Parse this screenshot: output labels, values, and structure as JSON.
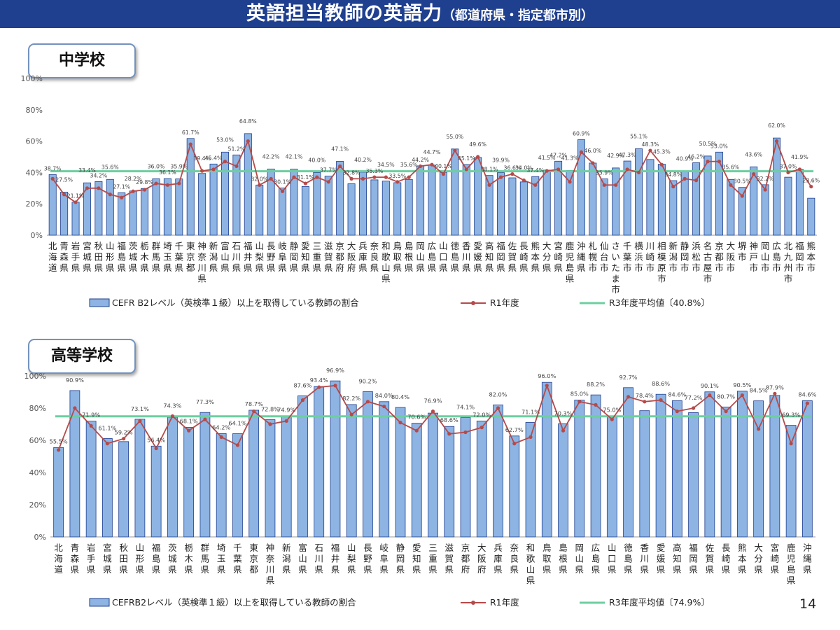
{
  "header": {
    "title": "英語担当教師の英語力",
    "subtitle": "（都道府県・指定都市別）"
  },
  "page_number": "14",
  "colors": {
    "bar_fill": "#8db4e2",
    "bar_stroke": "#1f3f8f",
    "line": "#b54a4a",
    "average": "#6dcfa0",
    "header_bg": "#1f3f8f"
  },
  "chart_data": [
    {
      "section_label": "中学校",
      "type": "bar",
      "ylim": [
        0,
        100
      ],
      "y_ticks": [
        "0%",
        "20%",
        "40%",
        "60%",
        "80%",
        "100%"
      ],
      "grid": false,
      "categories": [
        "北海道",
        "青森県",
        "岩手県",
        "宮城県",
        "秋田県",
        "山形県",
        "福島県",
        "茨城県",
        "栃木県",
        "群馬県",
        "埼玉県",
        "千葉県",
        "東京都",
        "神奈川県",
        "新潟県",
        "富山県",
        "石川県",
        "福井県",
        "山梨県",
        "長野県",
        "岐阜県",
        "静岡県",
        "愛知県",
        "三重県",
        "滋賀県",
        "京都府",
        "大阪府",
        "兵庫県",
        "奈良県",
        "和歌山県",
        "鳥取県",
        "島根県",
        "岡山県",
        "広島県",
        "山口県",
        "徳島県",
        "香川県",
        "愛媛県",
        "高知県",
        "福岡県",
        "佐賀県",
        "長崎県",
        "熊本県",
        "大分県",
        "宮崎県",
        "鹿児島県",
        "沖縄県",
        "札幌市",
        "仙台市",
        "さいたま市",
        "千葉市",
        "横浜市",
        "川崎市",
        "相模原市",
        "新潟市",
        "静岡市",
        "浜松市",
        "名古屋市",
        "京都市",
        "大阪市",
        "堺市",
        "神戸市",
        "岡山市",
        "広島市",
        "北九州市",
        "福岡市",
        "熊本市"
      ],
      "series": [
        {
          "name": "CEFR B2レベル（英検準１級）以上を取得している教師の割合",
          "kind": "bar",
          "values": [
            38.7,
            27.5,
            21.1,
            33.4,
            34.2,
            35.6,
            27.1,
            28.2,
            29.8,
            36.0,
            36.1,
            35.9,
            61.7,
            39.4,
            45.4,
            53.0,
            51.2,
            64.8,
            32.0,
            42.2,
            30.1,
            42.1,
            31.1,
            40.0,
            37.7,
            47.1,
            32.8,
            40.2,
            35.3,
            34.5,
            33.5,
            35.6,
            44.2,
            44.7,
            40.1,
            55.0,
            45.1,
            49.6,
            38.1,
            39.9,
            36.6,
            34.0,
            37.4,
            41.5,
            47.2,
            41.3,
            60.9,
            46.0,
            35.9,
            42.9,
            47.3,
            55.1,
            48.3,
            45.3,
            34.8,
            40.9,
            46.2,
            50.5,
            53.0,
            35.6,
            30.5,
            43.6,
            32.2,
            62.0,
            37.0,
            41.9,
            23.6
          ],
          "labels": [
            "38.7%",
            "27.5%",
            "21.1%",
            "33.4%",
            "34.2%",
            "35.6%",
            "27.1%",
            "28.2%",
            "29.8%",
            "36.0%",
            "36.1%",
            "35.9%",
            "61.7%",
            "39.4%",
            "45.4%",
            "53.0%",
            "51.2%",
            "64.8%",
            "32.0%",
            "42.2%",
            "30.1%",
            "42.1%",
            "31.1%",
            "40.0%",
            "37.7%",
            "47.1%",
            "32.8%",
            "40.2%",
            "35.3%",
            "34.5%",
            "33.5%",
            "35.6%",
            "44.2%",
            "44.7%",
            "40.1%",
            "55.0%",
            "45.1%",
            "49.6%",
            "38.1%",
            "39.9%",
            "36.6%",
            "34.0%",
            "37.4%",
            "41.5%",
            "47.2%",
            "41.3%",
            "60.9%",
            "46.0%",
            "35.9%",
            "42.9%",
            "47.3%",
            "55.1%",
            "48.3%",
            "45.3%",
            "34.8%",
            "40.9%",
            "46.2%",
            "50.5%",
            "53.0%",
            "35.6%",
            "30.5%",
            "43.6%",
            "32.2%",
            "62.0%",
            "37.0%",
            "41.9%",
            "23.6%"
          ]
        },
        {
          "name": "R1年度",
          "kind": "line",
          "values": [
            36,
            26,
            21,
            30,
            30,
            26,
            24,
            28,
            29,
            33,
            32,
            33,
            58,
            41,
            42,
            47,
            44,
            60,
            32,
            36,
            28,
            37,
            33,
            37,
            34,
            44,
            36,
            36,
            37,
            37,
            34,
            37,
            44,
            45,
            39,
            54,
            42,
            50,
            32,
            37,
            39,
            35,
            32,
            41,
            42,
            34,
            53,
            46,
            32,
            32,
            42,
            40,
            54,
            45,
            31,
            36,
            35,
            47,
            47,
            32,
            25,
            39,
            29,
            60,
            40,
            42,
            31
          ]
        },
        {
          "name": "R3年度平均値〔40.8%〕",
          "kind": "average",
          "value": 40.8
        }
      ]
    },
    {
      "section_label": "高等学校",
      "type": "bar",
      "ylim": [
        0,
        100
      ],
      "y_ticks": [
        "0%",
        "20%",
        "40%",
        "60%",
        "80%",
        "100%"
      ],
      "grid": false,
      "categories": [
        "北海道",
        "青森県",
        "岩手県",
        "宮城県",
        "秋田県",
        "山形県",
        "福島県",
        "茨城県",
        "栃木県",
        "群馬県",
        "埼玉県",
        "千葉県",
        "東京都",
        "神奈川県",
        "新潟県",
        "富山県",
        "石川県",
        "福井県",
        "山梨県",
        "長野県",
        "岐阜県",
        "静岡県",
        "愛知県",
        "三重県",
        "滋賀県",
        "京都府",
        "大阪府",
        "兵庫県",
        "奈良県",
        "和歌山県",
        "鳥取県",
        "島根県",
        "岡山県",
        "広島県",
        "山口県",
        "徳島県",
        "香川県",
        "愛媛県",
        "高知県",
        "福岡県",
        "佐賀県",
        "長崎県",
        "熊本県",
        "大分県",
        "宮崎県",
        "鹿児島県",
        "沖縄県"
      ],
      "series": [
        {
          "name": "CEFRB2レベル（英検準１級）以上を取得している教師の割合",
          "kind": "bar",
          "values": [
            55.5,
            90.9,
            71.9,
            61.1,
            59.2,
            73.1,
            56.4,
            74.3,
            68.1,
            77.3,
            64.2,
            64.1,
            78.7,
            72.8,
            74.9,
            87.6,
            93.4,
            96.9,
            82.2,
            90.2,
            84.0,
            80.4,
            70.6,
            76.9,
            68.6,
            74.1,
            72.0,
            82.0,
            62.7,
            71.1,
            96.0,
            70.3,
            85.0,
            88.2,
            75.0,
            92.7,
            78.4,
            88.6,
            84.6,
            77.2,
            90.1,
            80.7,
            90.5,
            84.5,
            87.9,
            69.3,
            84.6
          ],
          "labels": [
            "55.5%",
            "90.9%",
            "71.9%",
            "61.1%",
            "59.2%",
            "73.1%",
            "56.4%",
            "74.3%",
            "68.1%",
            "77.3%",
            "64.2%",
            "64.1%",
            "78.7%",
            "72.8%",
            "74.9%",
            "87.6%",
            "93.4%",
            "96.9%",
            "82.2%",
            "90.2%",
            "84.0%",
            "80.4%",
            "70.6%",
            "76.9%",
            "68.6%",
            "74.1%",
            "72.0%",
            "82.0%",
            "62.7%",
            "71.1%",
            "96.0%",
            "70.3%",
            "85.0%",
            "88.2%",
            "75.0%",
            "92.7%",
            "78.4%",
            "88.6%",
            "84.6%",
            "77.2%",
            "90.1%",
            "80.7%",
            "90.5%",
            "84.5%",
            "87.9%",
            "69.3%",
            "84.6%"
          ]
        },
        {
          "name": "R1年度",
          "kind": "line",
          "values": [
            54,
            80,
            69,
            58,
            61,
            72,
            55,
            75,
            66,
            73,
            62,
            57,
            78,
            70,
            72,
            85,
            93,
            94,
            76,
            84,
            81,
            71,
            66,
            78,
            64,
            65,
            68,
            80,
            58,
            62,
            94,
            66,
            84,
            82,
            73,
            87,
            84,
            85,
            78,
            80,
            88,
            78,
            88,
            67,
            89,
            58,
            83
          ]
        },
        {
          "name": "R3年度平均値〔74.9%〕",
          "kind": "average",
          "value": 74.9
        }
      ]
    }
  ]
}
